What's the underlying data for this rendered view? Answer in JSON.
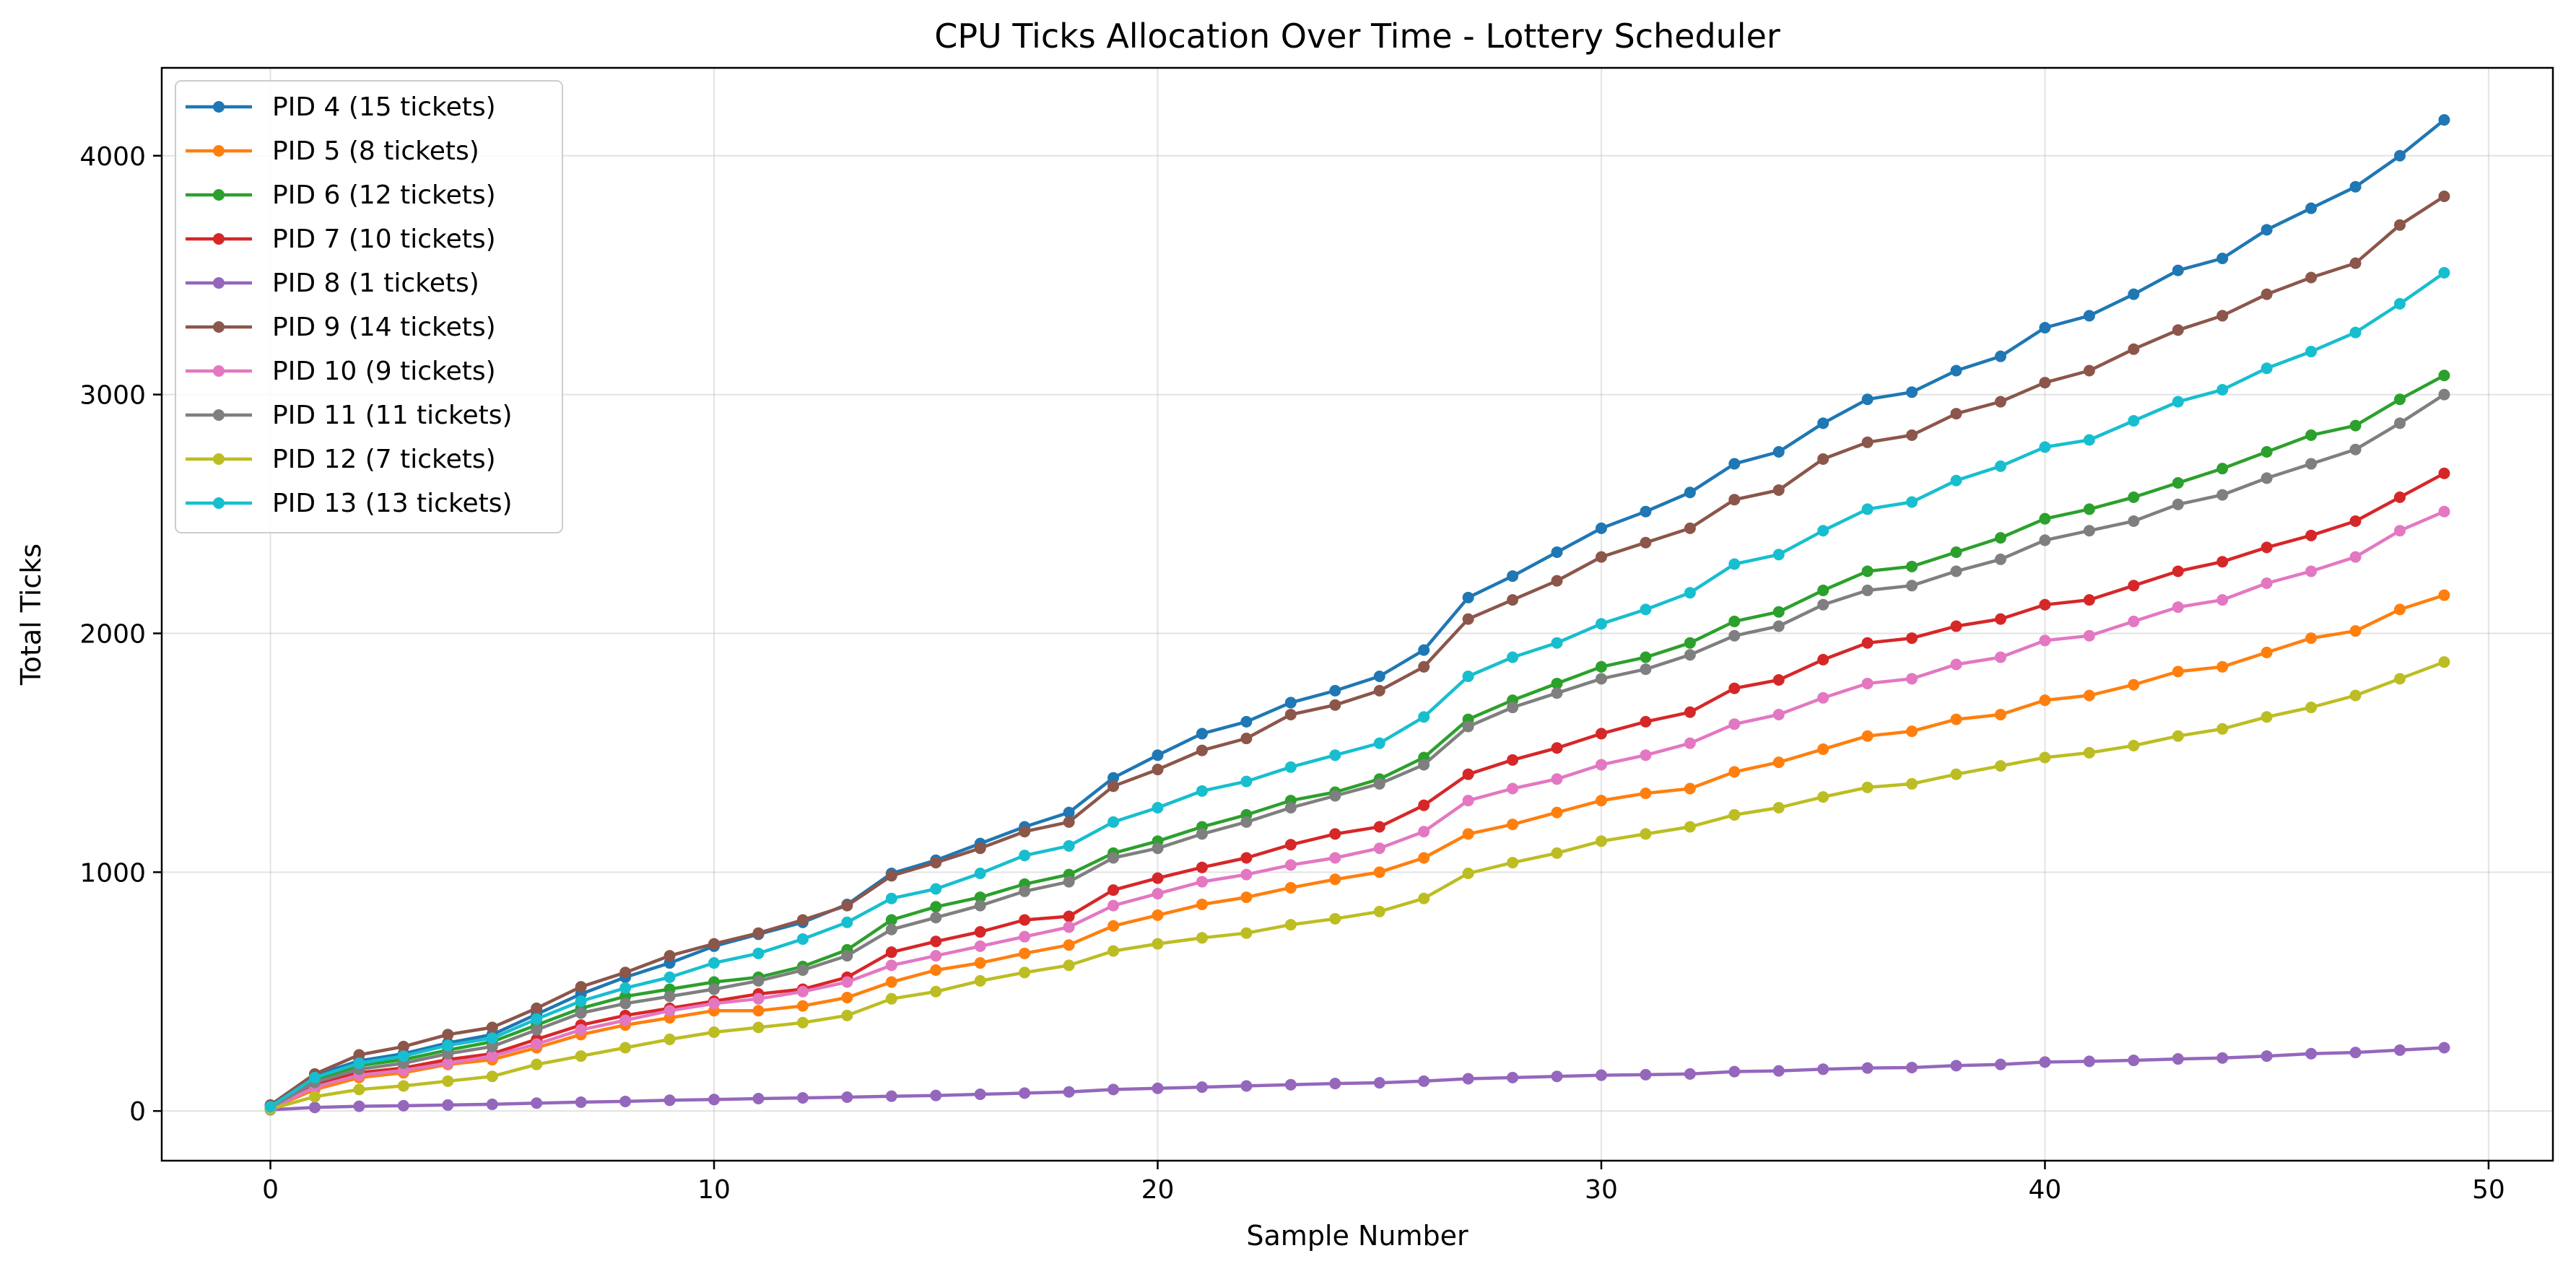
{
  "chart_data": {
    "type": "line",
    "title": "CPU Ticks Allocation Over Time - Lottery Scheduler",
    "xlabel": "Sample Number",
    "ylabel": "Total Ticks",
    "xlim": [
      -2.45,
      51.45
    ],
    "ylim": [
      -208,
      4368
    ],
    "xticks": [
      0,
      10,
      20,
      30,
      40,
      50
    ],
    "yticks": [
      0,
      1000,
      2000,
      3000,
      4000
    ],
    "grid": true,
    "legend_position": "top-left",
    "x": [
      0,
      1,
      2,
      3,
      4,
      5,
      6,
      7,
      8,
      9,
      10,
      11,
      12,
      13,
      14,
      15,
      16,
      17,
      18,
      19,
      20,
      21,
      22,
      23,
      24,
      25,
      26,
      27,
      28,
      29,
      30,
      31,
      32,
      33,
      34,
      35,
      36,
      37,
      38,
      39,
      40,
      41,
      42,
      43,
      44,
      45,
      46,
      47,
      48,
      49
    ],
    "series": [
      {
        "name": "PID 4 (15 tickets)",
        "color": "#1f77b4",
        "values": [
          20,
          150,
          210,
          240,
          285,
          320,
          405,
          490,
          560,
          620,
          690,
          740,
          790,
          865,
          995,
          1050,
          1120,
          1190,
          1250,
          1395,
          1490,
          1580,
          1630,
          1710,
          1760,
          1820,
          1930,
          2150,
          2240,
          2340,
          2440,
          2510,
          2590,
          2710,
          2760,
          2880,
          2980,
          3010,
          3100,
          3160,
          3280,
          3330,
          3420,
          3520,
          3570,
          3690,
          3780,
          3870,
          4000,
          4150
        ]
      },
      {
        "name": "PID 5 (8 tickets)",
        "color": "#ff7f0e",
        "values": [
          10,
          90,
          140,
          160,
          195,
          215,
          265,
          320,
          360,
          390,
          420,
          420,
          440,
          475,
          540,
          590,
          620,
          660,
          695,
          775,
          820,
          865,
          895,
          935,
          970,
          1000,
          1060,
          1160,
          1200,
          1250,
          1300,
          1330,
          1350,
          1420,
          1460,
          1515,
          1570,
          1590,
          1640,
          1660,
          1720,
          1740,
          1785,
          1840,
          1860,
          1920,
          1980,
          2010,
          2100,
          2160
        ]
      },
      {
        "name": "PID 6 (12 tickets)",
        "color": "#2ca02c",
        "values": [
          15,
          130,
          190,
          215,
          255,
          290,
          360,
          430,
          480,
          510,
          540,
          560,
          605,
          675,
          800,
          855,
          895,
          950,
          990,
          1080,
          1130,
          1190,
          1240,
          1300,
          1335,
          1390,
          1480,
          1640,
          1720,
          1790,
          1860,
          1900,
          1960,
          2050,
          2090,
          2180,
          2260,
          2280,
          2340,
          2400,
          2480,
          2520,
          2570,
          2630,
          2690,
          2760,
          2830,
          2870,
          2980,
          3080
        ]
      },
      {
        "name": "PID 7 (10 tickets)",
        "color": "#d62728",
        "values": [
          12,
          110,
          160,
          180,
          215,
          240,
          300,
          360,
          400,
          430,
          460,
          490,
          510,
          560,
          665,
          710,
          750,
          800,
          815,
          925,
          975,
          1020,
          1060,
          1115,
          1160,
          1190,
          1280,
          1410,
          1470,
          1520,
          1580,
          1630,
          1670,
          1770,
          1805,
          1890,
          1960,
          1980,
          2030,
          2060,
          2120,
          2140,
          2200,
          2260,
          2300,
          2360,
          2410,
          2470,
          2570,
          2670
        ]
      },
      {
        "name": "PID 8 (1 tickets)",
        "color": "#9467bd",
        "values": [
          5,
          15,
          20,
          22,
          25,
          28,
          33,
          37,
          40,
          45,
          48,
          52,
          55,
          58,
          62,
          65,
          70,
          75,
          80,
          90,
          95,
          100,
          105,
          110,
          115,
          118,
          125,
          135,
          140,
          145,
          150,
          152,
          155,
          165,
          168,
          175,
          180,
          182,
          190,
          195,
          205,
          208,
          212,
          218,
          222,
          230,
          240,
          245,
          255,
          265
        ]
      },
      {
        "name": "PID 9 (14 tickets)",
        "color": "#8c564b",
        "values": [
          25,
          155,
          235,
          270,
          320,
          350,
          430,
          520,
          580,
          650,
          700,
          745,
          800,
          860,
          985,
          1040,
          1100,
          1170,
          1210,
          1360,
          1430,
          1510,
          1560,
          1660,
          1700,
          1760,
          1860,
          2060,
          2140,
          2220,
          2320,
          2380,
          2440,
          2560,
          2600,
          2730,
          2800,
          2830,
          2920,
          2970,
          3050,
          3100,
          3190,
          3270,
          3330,
          3420,
          3490,
          3550,
          3710,
          3830
        ]
      },
      {
        "name": "PID 10 (9 tickets)",
        "color": "#e377c2",
        "values": [
          10,
          100,
          150,
          170,
          200,
          230,
          280,
          340,
          380,
          420,
          450,
          470,
          500,
          540,
          610,
          650,
          690,
          730,
          770,
          860,
          910,
          960,
          990,
          1030,
          1060,
          1100,
          1170,
          1300,
          1350,
          1390,
          1450,
          1490,
          1540,
          1620,
          1660,
          1730,
          1790,
          1810,
          1870,
          1900,
          1970,
          1990,
          2050,
          2110,
          2140,
          2210,
          2260,
          2320,
          2430,
          2510
        ]
      },
      {
        "name": "PID 11 (11 tickets)",
        "color": "#7f7f7f",
        "values": [
          15,
          120,
          175,
          200,
          240,
          270,
          340,
          410,
          450,
          480,
          510,
          545,
          590,
          650,
          760,
          810,
          860,
          920,
          960,
          1060,
          1100,
          1160,
          1210,
          1270,
          1320,
          1370,
          1450,
          1610,
          1690,
          1750,
          1810,
          1850,
          1910,
          1990,
          2030,
          2120,
          2180,
          2200,
          2260,
          2310,
          2390,
          2430,
          2470,
          2540,
          2580,
          2650,
          2710,
          2770,
          2880,
          3000
        ]
      },
      {
        "name": "PID 12 (7 tickets)",
        "color": "#bcbd22",
        "values": [
          8,
          60,
          90,
          105,
          125,
          145,
          195,
          230,
          265,
          300,
          330,
          350,
          370,
          400,
          470,
          500,
          545,
          580,
          610,
          670,
          700,
          725,
          745,
          780,
          805,
          835,
          890,
          995,
          1040,
          1080,
          1130,
          1160,
          1190,
          1240,
          1270,
          1315,
          1355,
          1370,
          1410,
          1445,
          1480,
          1500,
          1530,
          1570,
          1600,
          1650,
          1690,
          1740,
          1810,
          1880
        ]
      },
      {
        "name": "PID 13 (13 tickets)",
        "color": "#17becf",
        "values": [
          18,
          140,
          200,
          230,
          275,
          305,
          385,
          460,
          515,
          560,
          620,
          660,
          720,
          790,
          890,
          930,
          995,
          1070,
          1110,
          1210,
          1270,
          1340,
          1380,
          1440,
          1490,
          1540,
          1650,
          1820,
          1900,
          1960,
          2040,
          2100,
          2170,
          2290,
          2330,
          2430,
          2520,
          2550,
          2640,
          2700,
          2780,
          2810,
          2890,
          2970,
          3020,
          3110,
          3180,
          3260,
          3380,
          3510
        ]
      }
    ]
  }
}
